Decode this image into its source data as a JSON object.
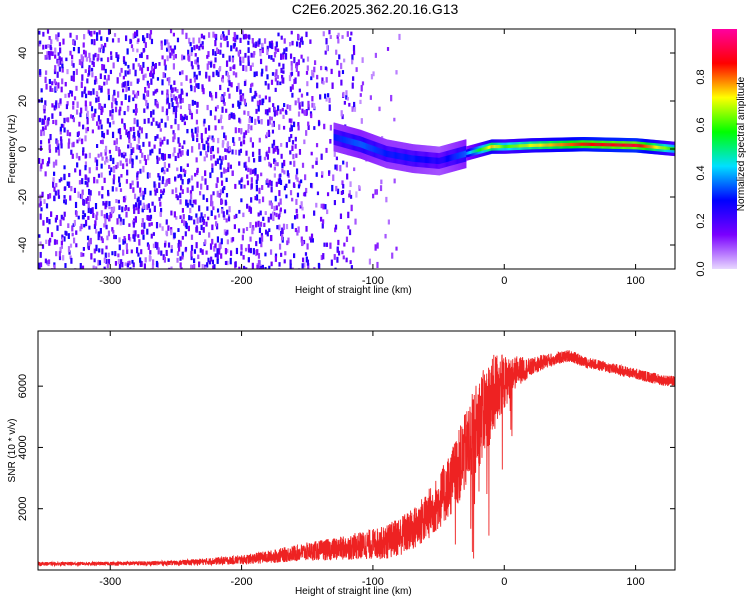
{
  "title": "C2E6.2025.362.20.16.G13",
  "chart_data": [
    {
      "type": "heatmap",
      "xlabel": "Height of straight line (km)",
      "ylabel": "Frequency (Hz)",
      "xlim": [
        -355,
        130
      ],
      "ylim": [
        -50,
        50
      ],
      "x_ticks": [
        -300,
        -200,
        -100,
        0,
        100
      ],
      "y_ticks": [
        -40,
        -20,
        0,
        20,
        40
      ],
      "colorbar": {
        "label": "Normalized spectral amplitude",
        "range": [
          0,
          1
        ],
        "ticks": [
          0.0,
          0.2,
          0.4,
          0.6,
          0.8
        ],
        "tick_labels": [
          "0.0",
          "0.2",
          "0.4",
          "0.6",
          "0.8"
        ],
        "colormap": [
          "#e8d8ff",
          "#7a00ff",
          "#0000ff",
          "#00e0ff",
          "#00ff00",
          "#ffff00",
          "#ff0000",
          "#ff00a0"
        ]
      },
      "ridge_line": {
        "x": [
          -130,
          -110,
          -90,
          -70,
          -50,
          -30,
          -10,
          0,
          20,
          60,
          100,
          130
        ],
        "y": [
          5,
          2,
          -2,
          -4,
          -5,
          -2,
          1,
          1,
          1.5,
          2,
          1.5,
          0
        ]
      },
      "ridge_amplitude": {
        "x": [
          -130,
          -110,
          -90,
          -70,
          -50,
          -30,
          -10,
          0,
          20,
          60,
          100,
          130
        ],
        "values": [
          0.3,
          0.35,
          0.3,
          0.3,
          0.25,
          0.35,
          0.75,
          0.6,
          0.7,
          0.85,
          0.9,
          0.55
        ]
      },
      "noise_region": {
        "x_range": [
          -355,
          -115
        ],
        "level": 0.15
      }
    },
    {
      "type": "line",
      "xlabel": "Height of straight line (km)",
      "ylabel": "SNR (10 * v/v)",
      "xlim": [
        -355,
        130
      ],
      "ylim": [
        0,
        7800
      ],
      "x_ticks": [
        -300,
        -200,
        -100,
        0,
        100
      ],
      "y_ticks": [
        2000,
        4000,
        6000
      ],
      "color": "#ee2222",
      "series": [
        {
          "x": [
            -355,
            -300,
            -250,
            -200,
            -175,
            -150,
            -125,
            -100,
            -90,
            -80,
            -70,
            -60,
            -50,
            -40,
            -30,
            -20,
            -10,
            -5,
            0,
            5,
            10,
            20,
            30,
            40,
            50,
            60,
            70,
            80,
            90,
            100,
            110,
            120,
            130
          ],
          "values": [
            200,
            210,
            230,
            330,
            450,
            600,
            700,
            850,
            900,
            1100,
            1300,
            1700,
            2200,
            2900,
            3800,
            4800,
            5500,
            6000,
            6100,
            6300,
            6500,
            6600,
            6800,
            6900,
            7000,
            6800,
            6700,
            6600,
            6500,
            6400,
            6300,
            6200,
            6150
          ],
          "noise": [
            60,
            60,
            80,
            150,
            220,
            300,
            380,
            500,
            550,
            650,
            700,
            800,
            900,
            1100,
            1300,
            1500,
            1400,
            1200,
            900,
            600,
            500,
            300,
            250,
            200,
            200,
            180,
            180,
            180,
            180,
            180,
            180,
            180,
            180
          ]
        }
      ]
    }
  ]
}
